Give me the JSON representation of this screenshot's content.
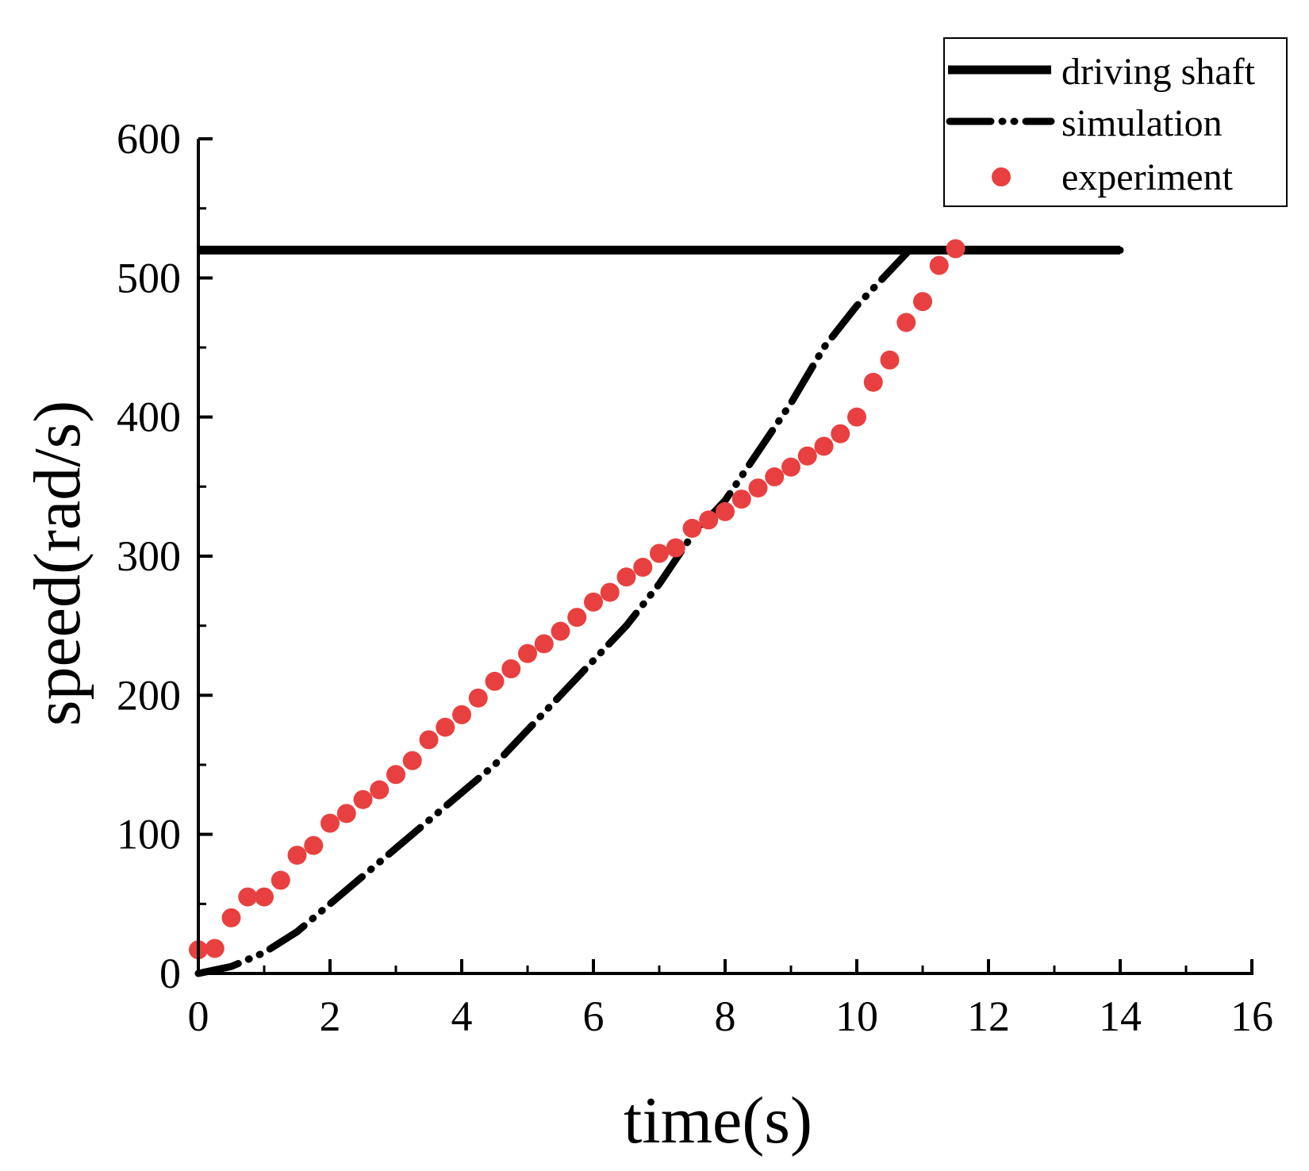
{
  "chart_data": {
    "type": "line",
    "title": "",
    "xlabel": "time(s)",
    "ylabel": "speed(rad/s)",
    "xlim": [
      0,
      16
    ],
    "ylim": [
      0,
      600
    ],
    "x_ticks": [
      0,
      2,
      4,
      6,
      8,
      10,
      12,
      14,
      16
    ],
    "y_ticks": [
      0,
      100,
      200,
      300,
      400,
      500,
      600
    ],
    "grid": false,
    "legend_position": "top-right",
    "series": [
      {
        "name": "driving shaft",
        "style": "solid",
        "color": "#000000",
        "x": [
          0,
          14
        ],
        "y": [
          520,
          520
        ]
      },
      {
        "name": "simulation",
        "style": "dash-dot-dot",
        "color": "#000000",
        "x": [
          0,
          0.5,
          1,
          1.5,
          2,
          2.5,
          3,
          3.5,
          4,
          4.5,
          5,
          5.5,
          6,
          6.5,
          7,
          7.5,
          8,
          8.5,
          9,
          9.5,
          10,
          10.5,
          10.8,
          11.5,
          12,
          13,
          14
        ],
        "y": [
          0,
          5,
          15,
          30,
          50,
          70,
          90,
          110,
          130,
          150,
          175,
          200,
          225,
          250,
          280,
          315,
          340,
          375,
          410,
          450,
          480,
          505,
          520,
          520,
          520,
          520,
          520
        ]
      },
      {
        "name": "experiment",
        "style": "markers",
        "color": "#e84040",
        "x": [
          0,
          0.25,
          0.5,
          0.75,
          1,
          1.25,
          1.5,
          1.75,
          2,
          2.25,
          2.5,
          2.75,
          3,
          3.25,
          3.5,
          3.75,
          4,
          4.25,
          4.5,
          4.75,
          5,
          5.25,
          5.5,
          5.75,
          6,
          6.25,
          6.5,
          6.75,
          7,
          7.25,
          7.5,
          7.75,
          8,
          8.25,
          8.5,
          8.75,
          9,
          9.25,
          9.5,
          9.75,
          10,
          10.25,
          10.5,
          10.75,
          11,
          11.25,
          11.5
        ],
        "y": [
          17,
          18,
          40,
          55,
          55,
          67,
          85,
          92,
          108,
          115,
          125,
          132,
          143,
          153,
          168,
          177,
          186,
          198,
          210,
          219,
          230,
          237,
          246,
          256,
          267,
          274,
          285,
          292,
          302,
          306,
          320,
          326,
          332,
          341,
          349,
          357,
          364,
          372,
          379,
          388,
          400,
          425,
          441,
          468,
          483,
          509,
          521
        ]
      }
    ]
  }
}
